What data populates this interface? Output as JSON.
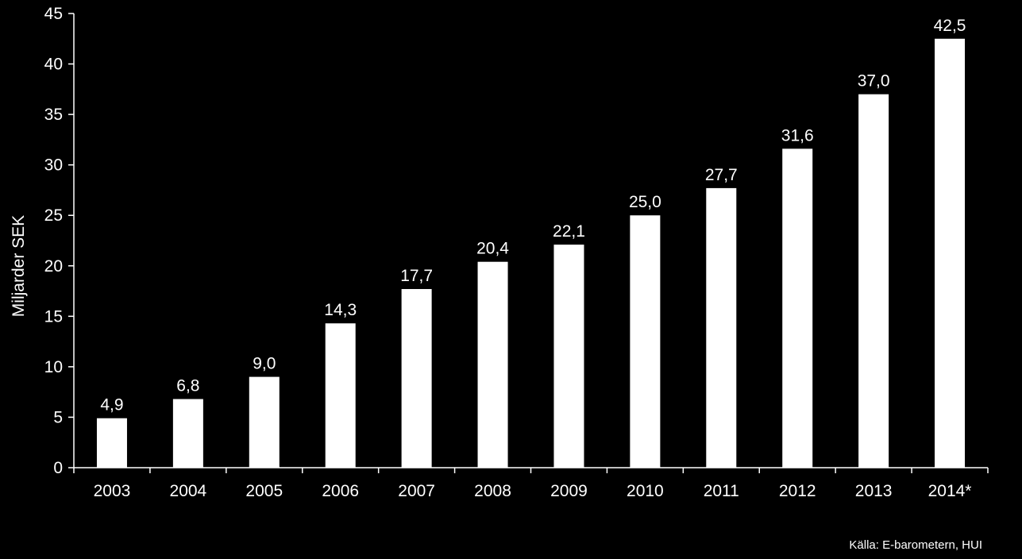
{
  "chart_data": {
    "type": "bar",
    "title": "",
    "xlabel": "",
    "ylabel": "Miljarder SEK",
    "ylim": [
      0,
      45
    ],
    "yticks": [
      0,
      5,
      10,
      15,
      20,
      25,
      30,
      35,
      40,
      45
    ],
    "categories": [
      "2003",
      "2004",
      "2005",
      "2006",
      "2007",
      "2008",
      "2009",
      "2010",
      "2011",
      "2012",
      "2013",
      "2014*"
    ],
    "values": [
      4.9,
      6.8,
      9.0,
      14.3,
      17.7,
      20.4,
      22.1,
      25.0,
      27.7,
      31.6,
      37.0,
      42.5
    ],
    "data_labels": [
      "4,9",
      "6,8",
      "9,0",
      "14,3",
      "17,7",
      "20,4",
      "22,1",
      "25,0",
      "27,7",
      "31,6",
      "37,0",
      "42,5"
    ],
    "grid": false,
    "legend": "none",
    "bar_color": "#ffffff",
    "background_color": "#000000"
  },
  "source_note": "Källa:  E-barometern, HUI"
}
